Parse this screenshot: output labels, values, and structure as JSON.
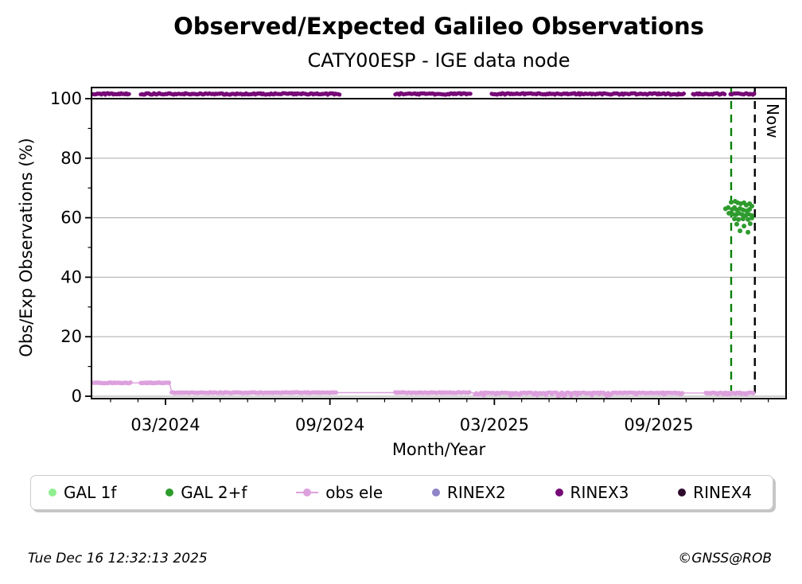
{
  "title": "Observed/Expected Galileo Observations",
  "subtitle": "CATY00ESP - IGE data node",
  "axes": {
    "x_label": "Month/Year",
    "y_label": "Obs/Exp Observations (%)"
  },
  "annotations": {
    "now_label": "Now"
  },
  "footer": {
    "timestamp": "Tue Dec 16 12:32:13 2025",
    "credit": "©GNSS@ROB"
  },
  "legend": [
    {
      "label": "GAL 1f",
      "color": "#90EE90",
      "marker": "dot"
    },
    {
      "label": "GAL 2+f",
      "color": "#2d9b2d",
      "marker": "dot"
    },
    {
      "label": "obs ele",
      "color": "#DDA0DD",
      "marker": "line-dot"
    },
    {
      "label": "RINEX2",
      "color": "#8f84c8",
      "marker": "dot"
    },
    {
      "label": "RINEX3",
      "color": "#760a76",
      "marker": "dot"
    },
    {
      "label": "RINEX4",
      "color": "#2d0a2d",
      "marker": "dot"
    }
  ],
  "chart_data": {
    "type": "scatter",
    "title": "Observed/Expected Galileo Observations",
    "subtitle": "CATY00ESP - IGE data node",
    "xlabel": "Month/Year",
    "ylabel": "Obs/Exp Observations (%)",
    "x_unit": "decimal_year",
    "xlim": [
      2023.942,
      2026.054
    ],
    "ylim": [
      -0.8,
      103.75
    ],
    "x_major_ticks": [
      {
        "t": 2024.167,
        "label": "03/2024"
      },
      {
        "t": 2024.667,
        "label": "09/2024"
      },
      {
        "t": 2025.167,
        "label": "03/2025"
      },
      {
        "t": 2025.667,
        "label": "09/2025"
      }
    ],
    "x_minor_tick_step_months": 1,
    "y_major_ticks": [
      0,
      20,
      40,
      60,
      80,
      100
    ],
    "y_minor_ticks": [
      10,
      30,
      50,
      70,
      90
    ],
    "grid": "horizontal-major",
    "grid_color": "#b4b4b4",
    "reference_lines": {
      "hundred_pct": {
        "y": 100,
        "color": "#000000",
        "style": "solid"
      },
      "now": {
        "x": 2025.959,
        "color": "#000000",
        "style": "dashed",
        "label": "Now"
      },
      "recent_window": {
        "x": 2025.887,
        "color": "#088008",
        "style": "dashed"
      }
    },
    "series": [
      {
        "name": "GAL 1f",
        "color": "#90EE90",
        "points": []
      },
      {
        "name": "GAL 2+f",
        "color": "#2d9b2d",
        "marker_radius": 3,
        "points": [
          [
            2025.887,
            65.2
          ],
          [
            2025.899,
            65.5
          ],
          [
            2025.907,
            65.0
          ],
          [
            2025.916,
            64.7
          ],
          [
            2025.926,
            65.0
          ],
          [
            2025.933,
            64.2
          ],
          [
            2025.943,
            64.7
          ],
          [
            2025.95,
            63.9
          ],
          [
            2025.87,
            63.0
          ],
          [
            2025.878,
            63.4
          ],
          [
            2025.89,
            62.8
          ],
          [
            2025.897,
            63.4
          ],
          [
            2025.904,
            62.6
          ],
          [
            2025.914,
            63.1
          ],
          [
            2025.923,
            62.6
          ],
          [
            2025.933,
            62.3
          ],
          [
            2025.943,
            62.8
          ],
          [
            2025.88,
            61.5
          ],
          [
            2025.892,
            61.2
          ],
          [
            2025.902,
            61.0
          ],
          [
            2025.911,
            61.5
          ],
          [
            2025.921,
            61.0
          ],
          [
            2025.931,
            60.7
          ],
          [
            2025.94,
            61.2
          ],
          [
            2025.95,
            60.7
          ],
          [
            2025.897,
            59.6
          ],
          [
            2025.909,
            59.4
          ],
          [
            2025.923,
            59.6
          ],
          [
            2025.938,
            59.4
          ],
          [
            2025.95,
            59.9
          ],
          [
            2025.904,
            57.8
          ],
          [
            2025.926,
            57.2
          ],
          [
            2025.945,
            58.0
          ],
          [
            2025.914,
            55.6
          ],
          [
            2025.938,
            55.1
          ]
        ]
      },
      {
        "name": "obs ele",
        "color": "#DDA0DD",
        "marker_radius": 2.8,
        "value_segments": [
          {
            "t0": 2023.948,
            "t1": 2024.063,
            "pct": 4.5,
            "jitter": 0
          },
          {
            "t0": 2024.092,
            "t1": 2024.179,
            "pct": 4.5,
            "jitter": 0
          },
          {
            "t0": 2024.186,
            "t1": 2024.69,
            "pct": 1.2,
            "jitter": 0
          },
          {
            "t0": 2024.866,
            "t1": 2025.094,
            "pct": 1.2,
            "jitter": 0
          },
          {
            "t0": 2025.108,
            "t1": 2025.742,
            "pct": 1.1,
            "jitter": 0.9
          },
          {
            "t0": 2025.81,
            "t1": 2025.955,
            "pct": 1.1,
            "jitter": 0.7
          }
        ],
        "connect_line": [
          [
            2023.948,
            4.5
          ],
          [
            2024.179,
            4.5
          ],
          [
            2024.186,
            1.2
          ],
          [
            2025.094,
            1.2
          ],
          [
            2025.108,
            1.1
          ],
          [
            2025.955,
            1.1
          ]
        ]
      },
      {
        "name": "RINEX2",
        "color": "#8f84c8",
        "points": []
      },
      {
        "name": "RINEX3",
        "color": "#760a76",
        "marker_radius": 2.6,
        "value_segments": [
          {
            "t0": 2023.948,
            "t1": 2024.056,
            "pct": 101.6,
            "jitter": 0
          },
          {
            "t0": 2024.092,
            "t1": 2024.698,
            "pct": 101.6,
            "jitter": 0
          },
          {
            "t0": 2024.866,
            "t1": 2025.096,
            "pct": 101.6,
            "jitter": 0
          },
          {
            "t0": 2025.159,
            "t1": 2025.744,
            "pct": 101.6,
            "jitter": 0
          },
          {
            "t0": 2025.771,
            "t1": 2025.868,
            "pct": 101.6,
            "jitter": 0
          },
          {
            "t0": 2025.885,
            "t1": 2025.957,
            "pct": 101.6,
            "jitter": 0
          }
        ]
      },
      {
        "name": "RINEX4",
        "color": "#2d0a2d",
        "points": []
      }
    ]
  }
}
